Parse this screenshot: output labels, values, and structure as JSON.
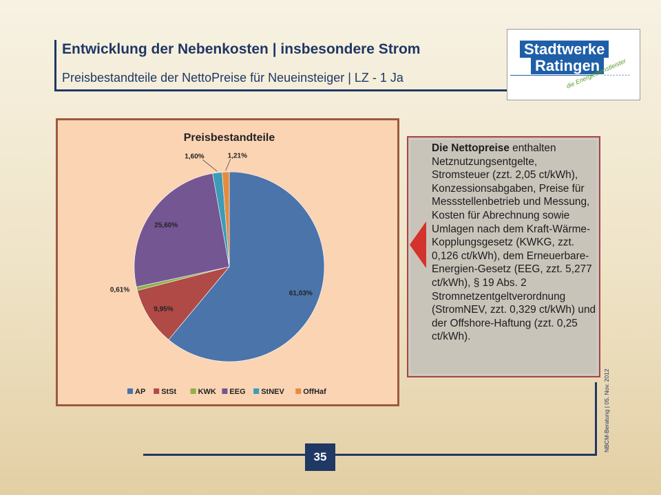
{
  "header": {
    "title": "Entwicklung der Nebenkosten | insbesondere Strom",
    "subtitle": "Preisbestandteile der NettoPreise für Neueinsteiger | LZ  - 1 Ja"
  },
  "logo": {
    "line1": "Stadtwerke",
    "line2": "Ratingen",
    "tagline": "die Energiedienstleister",
    "dots": ".........",
    "color": "#1f5fa8"
  },
  "chart_data": {
    "type": "pie",
    "title": "Preisbestandteile",
    "categories": [
      "AP",
      "StSt",
      "KWK",
      "EEG",
      "StNEV",
      "OffHaf"
    ],
    "values": [
      61.03,
      9.95,
      0.61,
      25.6,
      1.6,
      1.21
    ],
    "labels": [
      "61,03%",
      "9,95%",
      "0,61%",
      "25,60%",
      "1,60%",
      "1,21%"
    ],
    "colors": [
      "#4a74aa",
      "#b04a47",
      "#8fb04b",
      "#745693",
      "#3d9bb8",
      "#e48c3e"
    ],
    "legend_position": "bottom"
  },
  "text_box": {
    "bold_lead": "Die Nettopreise",
    "body": " enthalten Netznutzungsentgelte, Stromsteuer (zzt. 2,05 ct/kWh), Konzessionsabgaben, Preise für Messstellenbetrieb und Messung, Kosten für Abrechnung sowie Umlagen nach dem Kraft-Wärme-Kopplungsgesetz (KWKG, zzt. 0,126 ct/kWh), dem Erneuerbare-Energien-Gesetz (EEG, zzt. 5,277 ct/kWh), § 19 Abs. 2 Stromnetzentgeltverordnung (StromNEV, zzt. 0,329 ct/kWh) und der Offshore-Haftung (zzt. 0,25 ct/kWh)."
  },
  "footer": {
    "side_note": "NBCM-Beratung | 05. Nov. 2012",
    "page_number": "35"
  }
}
